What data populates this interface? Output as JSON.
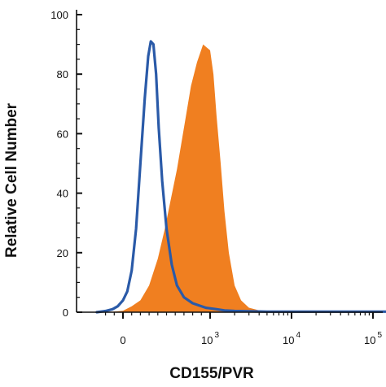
{
  "chart_data": {
    "type": "area",
    "xlabel": "CD155/PVR",
    "ylabel": "Relative Cell Number",
    "ylim": [
      0,
      100
    ],
    "yticks": [
      0,
      20,
      40,
      60,
      80,
      100
    ],
    "x_axis": "logicle (biexponential)",
    "xlim": [
      -300,
      250000
    ],
    "xticks": [
      {
        "value": 0,
        "base": "0",
        "exp": ""
      },
      {
        "value": 1000,
        "base": "10",
        "exp": "3"
      },
      {
        "value": 10000,
        "base": "10",
        "exp": "4"
      },
      {
        "value": 100000,
        "base": "10",
        "exp": "5"
      }
    ],
    "grid": false,
    "legend": "none",
    "series": [
      {
        "style": "outline",
        "color": "#2a5aa8",
        "x": [
          -300,
          -200,
          -120,
          -60,
          0,
          50,
          100,
          150,
          200,
          250,
          290,
          320,
          350,
          380,
          410,
          450,
          500,
          560,
          620,
          700,
          800,
          950,
          1200,
          1500,
          2000,
          3000,
          5000,
          10000,
          30000,
          100000,
          250000
        ],
        "y": [
          0,
          0.4,
          1,
          2,
          4,
          7,
          14,
          28,
          50,
          72,
          86,
          91,
          90,
          80,
          62,
          44,
          28,
          16,
          9,
          5,
          3,
          1.5,
          1,
          0.6,
          0.4,
          0.3,
          0.2,
          0.2,
          0.2,
          0.2,
          0.2
        ]
      },
      {
        "style": "filled",
        "color": "#f07f20",
        "x": [
          -300,
          -100,
          0,
          100,
          200,
          300,
          400,
          480,
          550,
          620,
          700,
          780,
          850,
          920,
          1000,
          1100,
          1200,
          1350,
          1500,
          1700,
          2000,
          2400,
          3000,
          4000,
          6000,
          10000,
          30000,
          100000,
          250000
        ],
        "y": [
          0,
          0.2,
          0.5,
          2,
          4,
          9,
          18,
          28,
          38,
          48,
          62,
          76,
          84,
          90,
          88,
          80,
          66,
          50,
          34,
          20,
          9,
          4,
          1.5,
          0.6,
          0.3,
          0.2,
          0.2,
          0.2,
          0.2
        ]
      }
    ]
  }
}
